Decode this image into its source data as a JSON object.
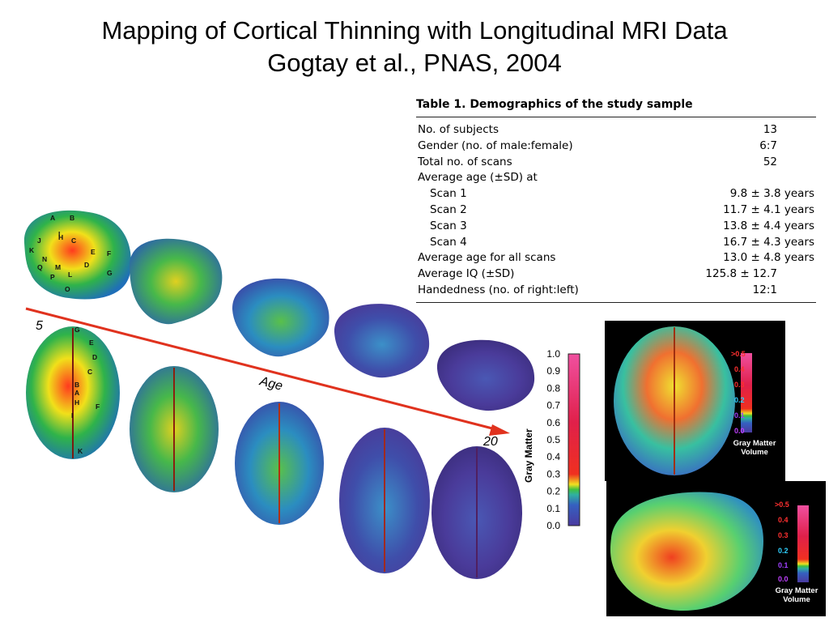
{
  "slide": {
    "title_line1": "Mapping of Cortical Thinning with Longitudinal MRI Data",
    "title_line2": "Gogtay et al., PNAS, 2004"
  },
  "table": {
    "caption": "Table 1. Demographics of the study sample",
    "rows": [
      {
        "label": "No. of subjects",
        "value": "13",
        "indent": false,
        "centered": true
      },
      {
        "label": "Gender (no. of male:female)",
        "value": "6:7",
        "indent": false,
        "centered": true
      },
      {
        "label": "Total no. of scans",
        "value": "52",
        "indent": false,
        "centered": true
      },
      {
        "label": "Average age (±SD) at",
        "value": "",
        "indent": false,
        "centered": true
      },
      {
        "label": "Scan 1",
        "value": "9.8 ± 3.8 years",
        "indent": true,
        "centered": false
      },
      {
        "label": "Scan 2",
        "value": "11.7 ± 4.1 years",
        "indent": true,
        "centered": false
      },
      {
        "label": "Scan 3",
        "value": "13.8 ± 4.4 years",
        "indent": true,
        "centered": false
      },
      {
        "label": "Scan 4",
        "value": "16.7 ± 4.3 years",
        "indent": true,
        "centered": false
      },
      {
        "label": "Average age for all scans",
        "value": "13.0 ± 4.8 years",
        "indent": false,
        "centered": false
      },
      {
        "label": "Average IQ (±SD)",
        "value": "125.8 ± 12.7",
        "indent": false,
        "centered": true
      },
      {
        "label": "Handedness (no. of right:left)",
        "value": "12:1",
        "indent": false,
        "centered": true
      }
    ]
  },
  "figure": {
    "arrow_start_label": "5",
    "arrow_end_label": "20",
    "arrow_label": "Age",
    "colorbar_title": "Gray Matter",
    "colorbar_ticks": [
      "1.0",
      "0.9",
      "0.8",
      "0.7",
      "0.6",
      "0.5",
      "0.4",
      "0.3",
      "0.2",
      "0.1",
      "0.0"
    ],
    "region_letters": [
      "A",
      "B",
      "C",
      "D",
      "E",
      "F",
      "G",
      "H",
      "I",
      "J",
      "K",
      "L",
      "M",
      "N",
      "O",
      "P",
      "Q",
      "A",
      "B",
      "C",
      "D",
      "E",
      "F",
      "G",
      "H",
      "I",
      "K"
    ],
    "arrow_color": "#e0321e"
  },
  "insets": {
    "label_line1": "Gray Matter",
    "label_line2": "Volume",
    "ticks": [
      ">0.5",
      "0.4",
      "0.3",
      "0.2",
      "0.1",
      "0.0"
    ],
    "tick_colors": [
      "#ff3030",
      "#ff3030",
      "#ff3030",
      "#30d0ff",
      "#a040ff",
      "#c040ff"
    ]
  }
}
